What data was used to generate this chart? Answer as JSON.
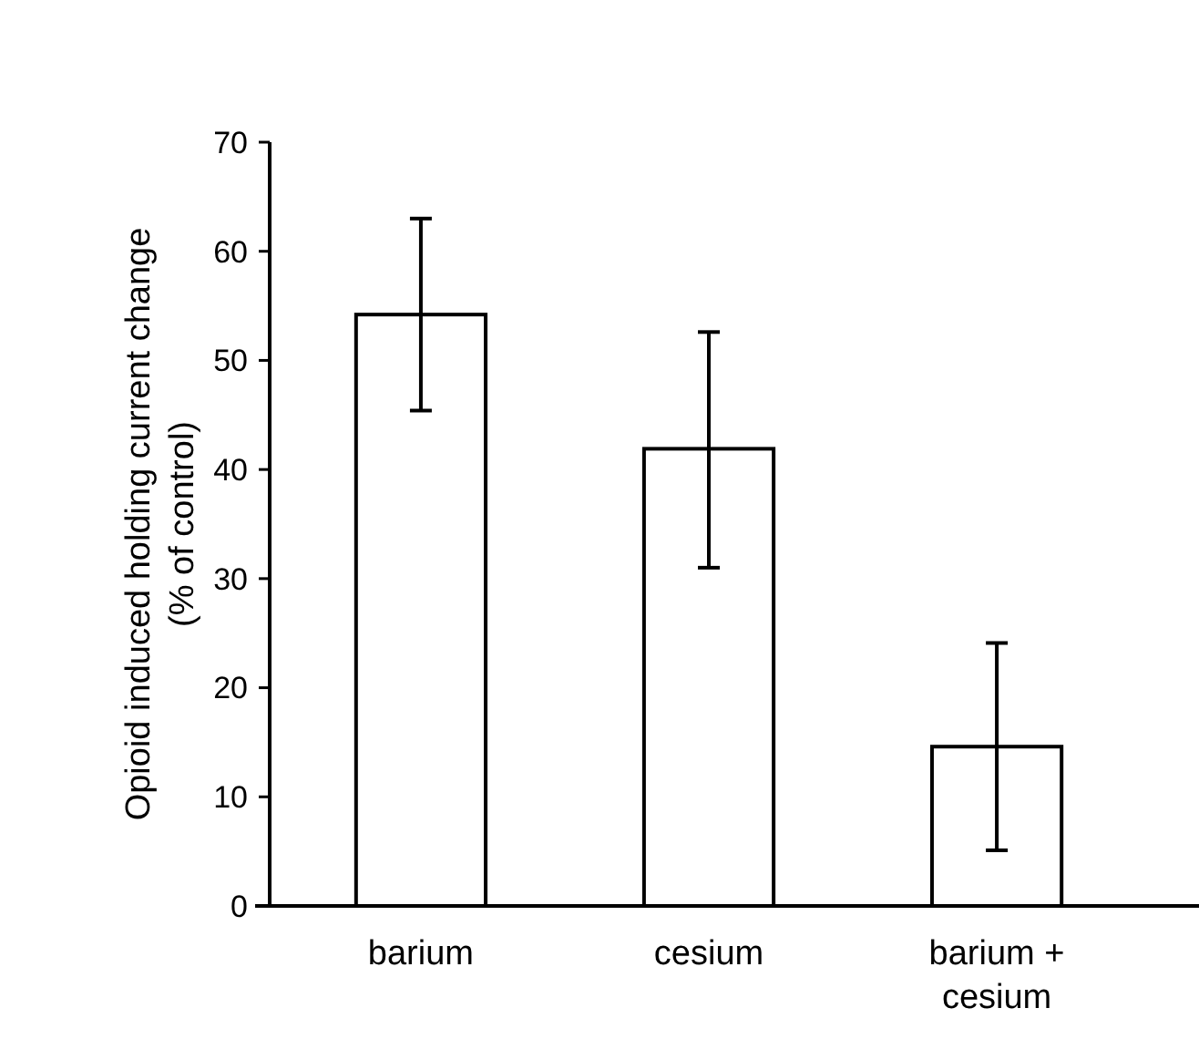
{
  "chart_data": {
    "type": "bar",
    "ylabel": "Opioid induced holding current change\n(% of control)",
    "categories": [
      "barium",
      "cesium",
      "barium + cesium"
    ],
    "values": [
      54.2,
      41.9,
      14.6
    ],
    "errors": [
      [
        45.4,
        63
      ],
      [
        31,
        52.6
      ],
      [
        5.1,
        24.1
      ]
    ],
    "color": "#ffffff",
    "ylim": [
      0,
      70
    ],
    "yticks": [
      0,
      10,
      20,
      30,
      40,
      50,
      60,
      70
    ],
    "grid": false
  }
}
